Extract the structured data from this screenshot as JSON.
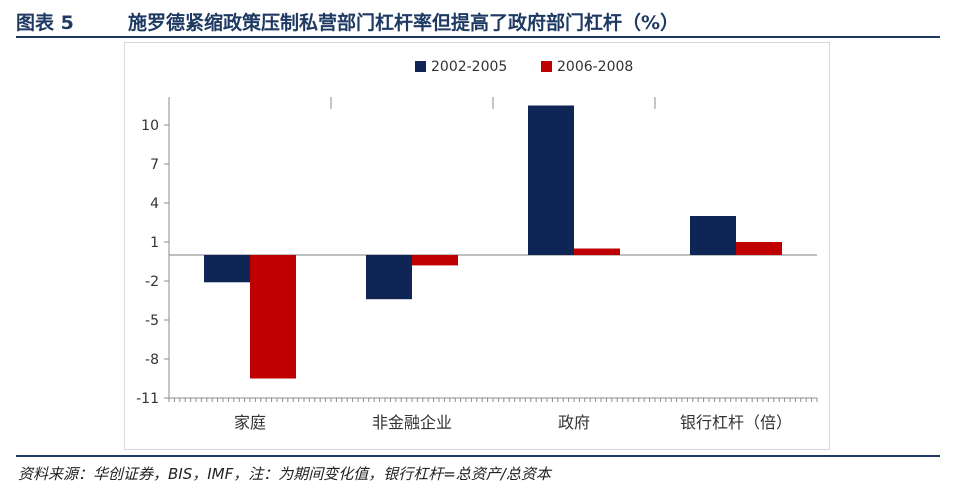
{
  "header": {
    "figure_label": "图表 5",
    "title": "施罗德紧缩政策压制私营部门杠杆率但提高了政府部门杠杆（%）"
  },
  "source": "资料来源：华创证券，BIS，IMF，注：为期间变化值，银行杠杆=总资产/总资本",
  "colors": {
    "accent": "#1e3a63",
    "series_1": "#0f2556",
    "series_2": "#c00000"
  },
  "chart_data": {
    "type": "bar",
    "categories": [
      "家庭",
      "非金融企业",
      "政府",
      "银行杠杆（倍）"
    ],
    "series": [
      {
        "name": "2002-2005",
        "color": "#0f2556",
        "values": [
          -2.1,
          -3.4,
          11.5,
          3.0
        ]
      },
      {
        "name": "2006-2008",
        "color": "#c00000",
        "values": [
          -9.5,
          -0.8,
          0.5,
          1.0
        ]
      }
    ],
    "ylim": [
      -11,
      12
    ],
    "yticks": [
      10,
      7,
      4,
      1,
      -2,
      -5,
      -8,
      -11
    ],
    "legend_position": "top-center",
    "grid": false
  }
}
